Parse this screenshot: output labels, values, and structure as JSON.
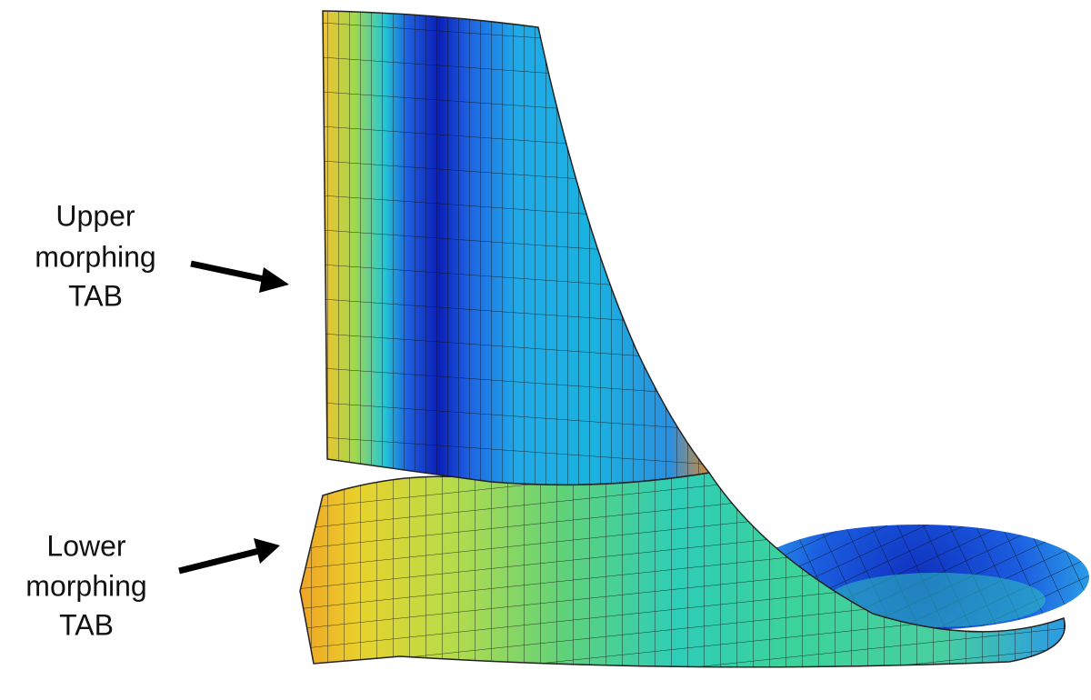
{
  "labels": [
    {
      "lines": [
        "Upper",
        "morphing",
        "TAB"
      ]
    },
    {
      "lines": [
        "Lower",
        "morphing",
        "TAB"
      ]
    }
  ]
}
